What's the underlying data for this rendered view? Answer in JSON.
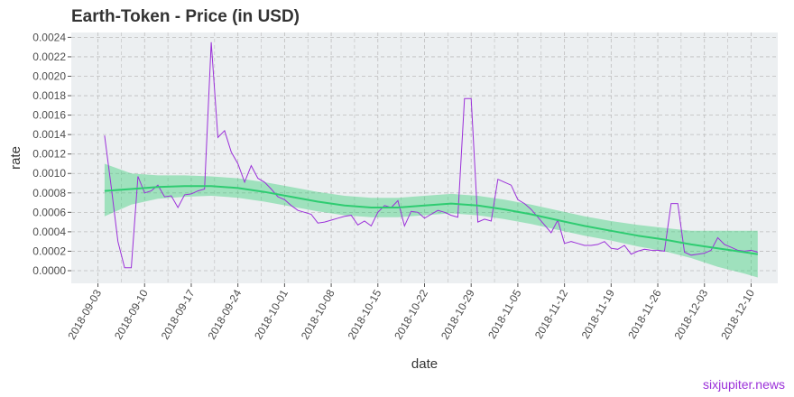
{
  "watermark": "sixjupiter.news",
  "colors": {
    "panel_bg": "#eceff1",
    "grid": "#bdbdbd",
    "price_line": "#9b30d9",
    "trend_line": "#2ecc71",
    "band_fill": "#2ecc71"
  },
  "chart_data": {
    "type": "line",
    "title": "Earth-Token - Price (in USD)",
    "xlabel": "date",
    "ylabel": "rate",
    "grid": true,
    "x_range": [
      "2018-08-30",
      "2018-12-14"
    ],
    "ylim": [
      -0.00013,
      0.00245
    ],
    "x_ticks": [
      "2018-09-03",
      "2018-09-10",
      "2018-09-17",
      "2018-09-24",
      "2018-10-01",
      "2018-10-08",
      "2018-10-15",
      "2018-10-22",
      "2018-10-29",
      "2018-11-05",
      "2018-11-12",
      "2018-11-19",
      "2018-11-26",
      "2018-12-03",
      "2018-12-10"
    ],
    "y_ticks": [
      "0.0000",
      "0.0002",
      "0.0004",
      "0.0006",
      "0.0008",
      "0.0010",
      "0.0012",
      "0.0014",
      "0.0016",
      "0.0018",
      "0.0020",
      "0.0022",
      "0.0024"
    ],
    "series": [
      {
        "x": [
          "2018-09-04",
          "2018-09-05",
          "2018-09-06",
          "2018-09-07",
          "2018-09-08",
          "2018-09-09",
          "2018-09-10",
          "2018-09-11",
          "2018-09-12",
          "2018-09-13",
          "2018-09-14",
          "2018-09-15",
          "2018-09-16",
          "2018-09-17",
          "2018-09-18",
          "2018-09-19",
          "2018-09-20",
          "2018-09-21",
          "2018-09-22",
          "2018-09-23",
          "2018-09-24",
          "2018-09-25",
          "2018-09-26",
          "2018-09-27",
          "2018-09-28",
          "2018-09-29",
          "2018-09-30",
          "2018-10-01",
          "2018-10-02",
          "2018-10-03",
          "2018-10-04",
          "2018-10-05",
          "2018-10-06",
          "2018-10-07",
          "2018-10-08",
          "2018-10-09",
          "2018-10-10",
          "2018-10-11",
          "2018-10-12",
          "2018-10-13",
          "2018-10-14",
          "2018-10-15",
          "2018-10-16",
          "2018-10-17",
          "2018-10-18",
          "2018-10-19",
          "2018-10-20",
          "2018-10-21",
          "2018-10-22",
          "2018-10-23",
          "2018-10-24",
          "2018-10-25",
          "2018-10-26",
          "2018-10-27",
          "2018-10-28",
          "2018-10-29",
          "2018-10-30",
          "2018-10-31",
          "2018-11-01",
          "2018-11-02",
          "2018-11-03",
          "2018-11-04",
          "2018-11-05",
          "2018-11-06",
          "2018-11-07",
          "2018-11-08",
          "2018-11-09",
          "2018-11-10",
          "2018-11-11",
          "2018-11-12",
          "2018-11-13",
          "2018-11-14",
          "2018-11-15",
          "2018-11-16",
          "2018-11-17",
          "2018-11-18",
          "2018-11-19",
          "2018-11-20",
          "2018-11-21",
          "2018-11-22",
          "2018-11-23",
          "2018-11-24",
          "2018-11-25",
          "2018-11-26",
          "2018-11-27",
          "2018-11-28",
          "2018-11-29",
          "2018-11-30",
          "2018-12-01",
          "2018-12-02",
          "2018-12-03",
          "2018-12-04",
          "2018-12-05",
          "2018-12-06",
          "2018-12-07",
          "2018-12-08",
          "2018-12-09",
          "2018-12-10",
          "2018-12-11"
        ],
        "y": [
          0.00139,
          0.00086,
          0.0003,
          3e-05,
          3e-05,
          0.00097,
          0.0008,
          0.00082,
          0.00088,
          0.00076,
          0.00077,
          0.00065,
          0.00078,
          0.00079,
          0.00082,
          0.00084,
          0.00235,
          0.00137,
          0.00144,
          0.00122,
          0.0011,
          0.00091,
          0.00108,
          0.00095,
          0.00091,
          0.00084,
          0.00076,
          0.00073,
          0.00067,
          0.00062,
          0.0006,
          0.00058,
          0.00049,
          0.0005,
          0.00052,
          0.00054,
          0.00056,
          0.00057,
          0.00047,
          0.00051,
          0.00046,
          0.0006,
          0.00067,
          0.00065,
          0.00072,
          0.00046,
          0.00061,
          0.0006,
          0.00054,
          0.00058,
          0.00062,
          0.0006,
          0.00057,
          0.00055,
          0.00177,
          0.00177,
          0.0005,
          0.00053,
          0.00051,
          0.00094,
          0.00091,
          0.00088,
          0.00073,
          0.00069,
          0.00063,
          0.00055,
          0.00047,
          0.00039,
          0.00052,
          0.00028,
          0.0003,
          0.00028,
          0.00026,
          0.00026,
          0.00027,
          0.0003,
          0.00023,
          0.00022,
          0.00026,
          0.00017,
          0.0002,
          0.00022,
          0.00021,
          0.00021,
          0.0002,
          0.00069,
          0.00069,
          0.00019,
          0.00016,
          0.00017,
          0.00018,
          0.00021,
          0.00034,
          0.00027,
          0.00024,
          0.00021,
          0.0002,
          0.00021,
          0.00019
        ]
      },
      {
        "x": [
          "2018-09-04",
          "2018-09-08",
          "2018-09-12",
          "2018-09-16",
          "2018-09-20",
          "2018-09-24",
          "2018-09-28",
          "2018-10-02",
          "2018-10-06",
          "2018-10-10",
          "2018-10-14",
          "2018-10-18",
          "2018-10-22",
          "2018-10-26",
          "2018-10-30",
          "2018-11-03",
          "2018-11-07",
          "2018-11-11",
          "2018-11-15",
          "2018-11-19",
          "2018-11-23",
          "2018-11-27",
          "2018-12-01",
          "2018-12-05",
          "2018-12-09",
          "2018-12-11"
        ],
        "y": [
          0.00082,
          0.00084,
          0.00086,
          0.00087,
          0.00087,
          0.00085,
          0.00081,
          0.00076,
          0.00071,
          0.00067,
          0.00065,
          0.00065,
          0.00067,
          0.00069,
          0.00067,
          0.00063,
          0.00058,
          0.00052,
          0.00046,
          0.00041,
          0.00036,
          0.00032,
          0.00027,
          0.00023,
          0.00019,
          0.00017
        ],
        "band_low": [
          0.00056,
          0.00068,
          0.00074,
          0.00076,
          0.00077,
          0.00075,
          0.00071,
          0.00066,
          0.00061,
          0.00057,
          0.00055,
          0.00055,
          0.00057,
          0.00059,
          0.00057,
          0.00053,
          0.00048,
          0.00042,
          0.00036,
          0.00031,
          0.00025,
          0.0002,
          0.00013,
          4e-05,
          -3e-05,
          -7e-05
        ],
        "band_high": [
          0.0011,
          0.001,
          0.00098,
          0.00098,
          0.00097,
          0.00095,
          0.00091,
          0.00086,
          0.00081,
          0.00077,
          0.00075,
          0.00075,
          0.00077,
          0.00079,
          0.00077,
          0.00073,
          0.00068,
          0.00062,
          0.00056,
          0.00051,
          0.00047,
          0.00044,
          0.00041,
          0.00041,
          0.00041,
          0.00041
        ]
      }
    ]
  }
}
